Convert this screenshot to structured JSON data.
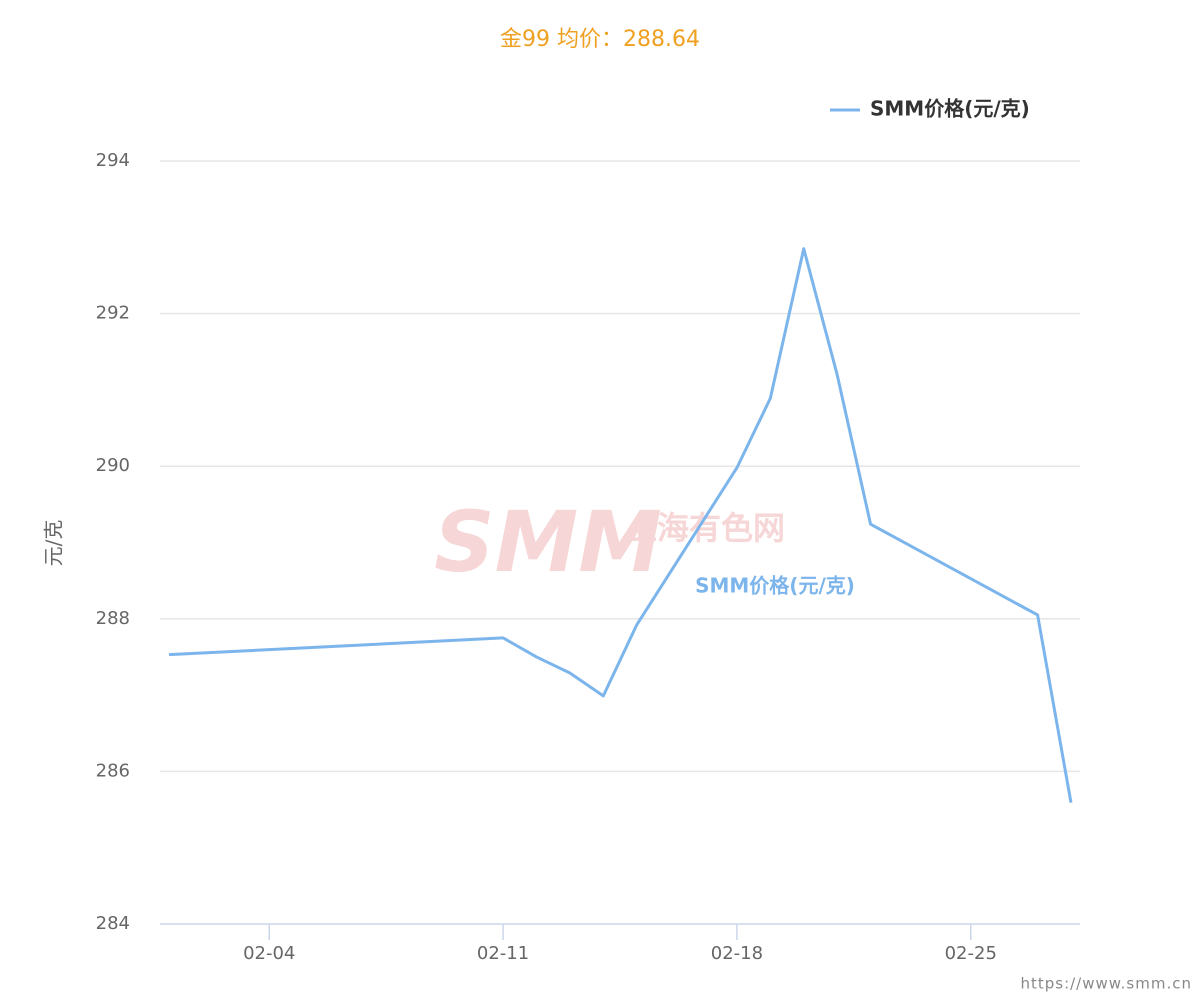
{
  "chart_data": {
    "type": "line",
    "title": "金99 均价：288.64",
    "y_label": "元/克",
    "x": [
      "02-01",
      "02-11",
      "02-12",
      "02-13",
      "02-14",
      "02-15",
      "02-18",
      "02-19",
      "02-20",
      "02-21",
      "02-22",
      "02-27",
      "02-28"
    ],
    "xlim": [
      "02-01",
      "02-28"
    ],
    "xticks": [
      "02-04",
      "02-11",
      "02-18",
      "02-25"
    ],
    "series": [
      {
        "name": "SMM价格(元/克)",
        "color": "#7cb5ec",
        "values": [
          287.53,
          287.75,
          287.5,
          287.29,
          286.99,
          287.92,
          289.98,
          290.89,
          292.85,
          291.2,
          289.24,
          288.05,
          285.59
        ]
      }
    ],
    "ylim": [
      284,
      294
    ],
    "yticks": [
      284,
      286,
      288,
      290,
      292,
      294
    ],
    "grid": true,
    "watermark": [
      "SMM",
      "上海有色网"
    ],
    "source": "https://www.smm.cn"
  }
}
